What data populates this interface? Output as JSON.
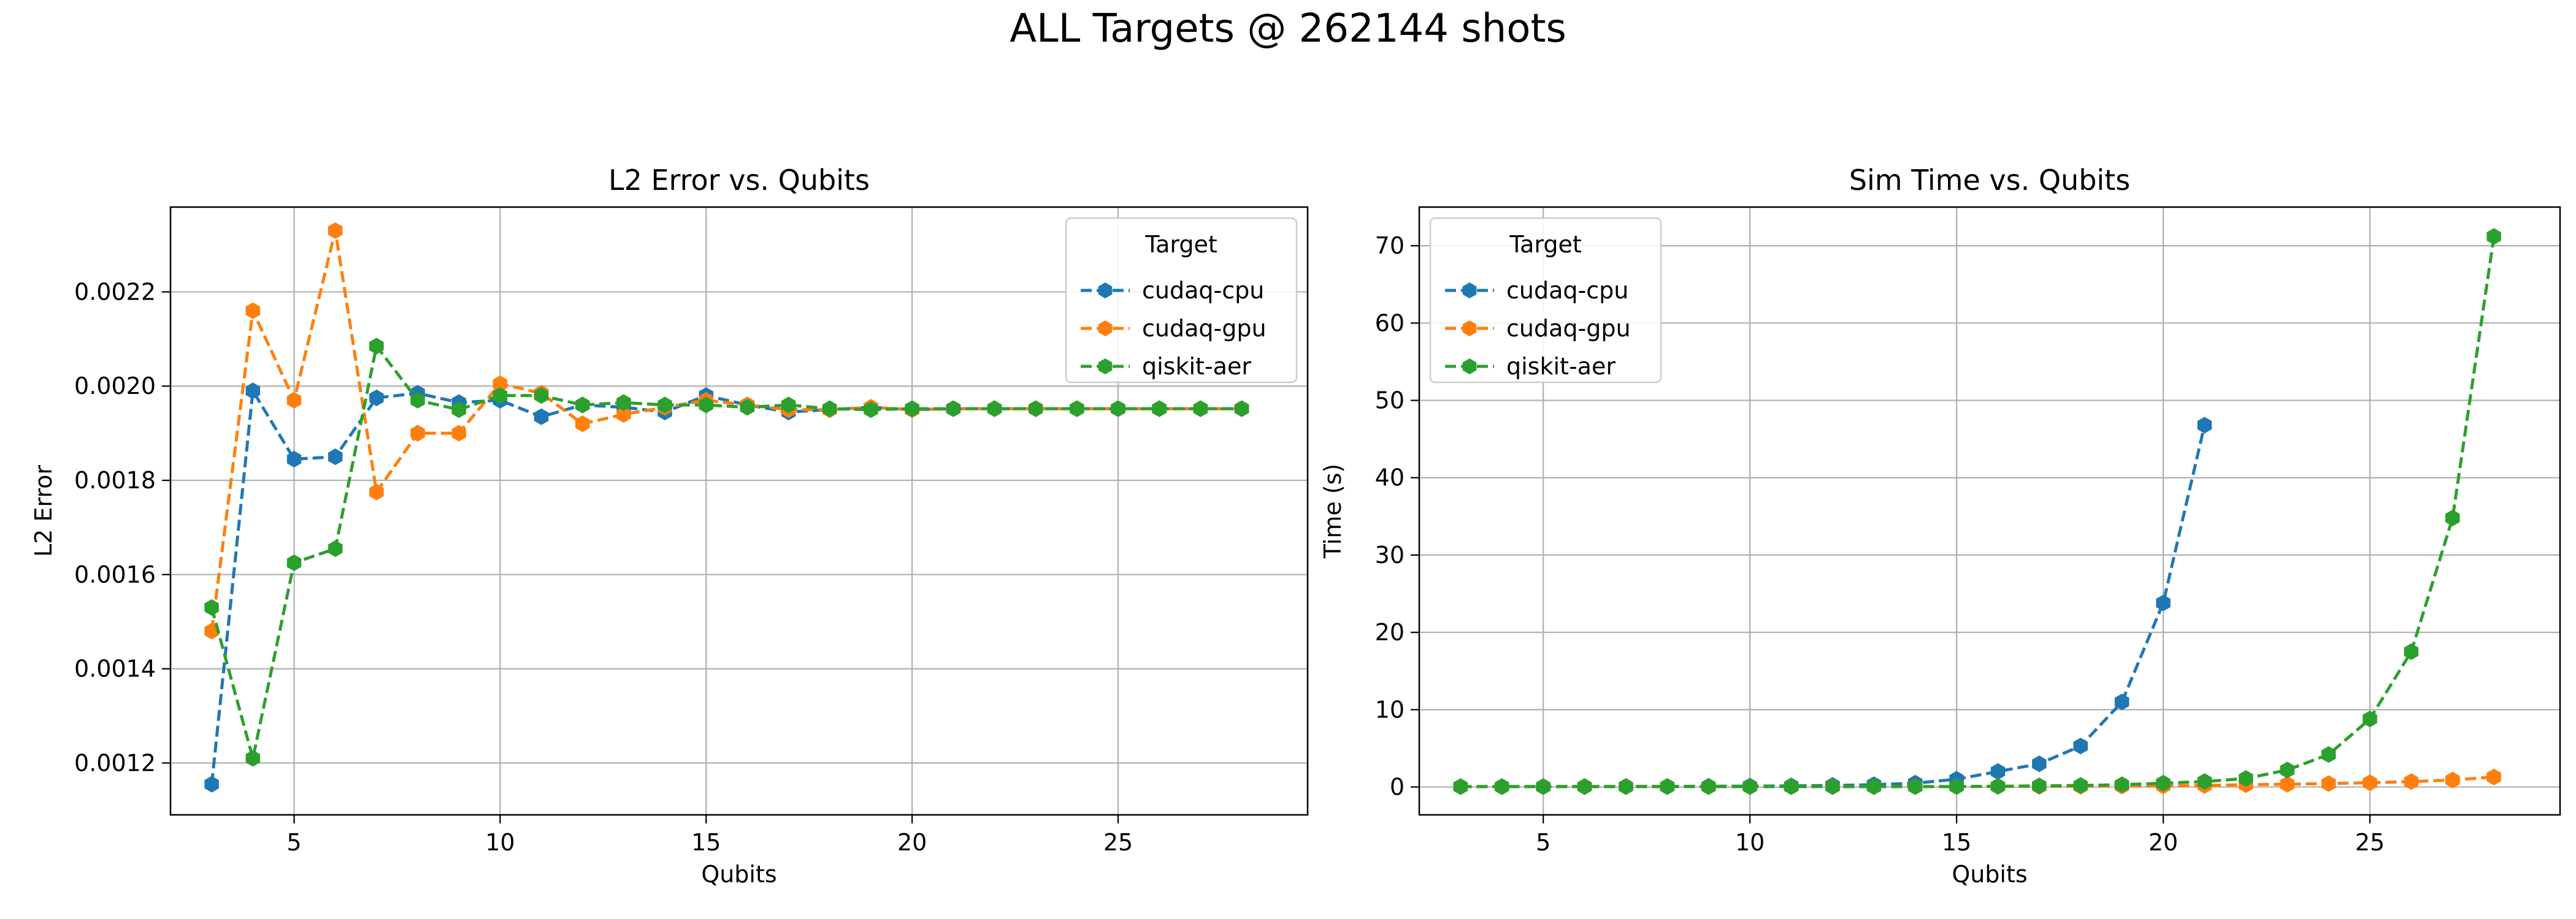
{
  "figure": {
    "suptitle": "ALL Targets @ 262144 shots"
  },
  "chart_data": [
    {
      "type": "line",
      "title": "L2 Error vs. Qubits",
      "xlabel": "Qubits",
      "ylabel": "L2 Error",
      "xlim": [
        2.0,
        29.6
      ],
      "ylim": [
        0.00109,
        0.00238
      ],
      "xticks": [
        5,
        10,
        15,
        20,
        25
      ],
      "yticks": [
        0.0012,
        0.0014,
        0.0016,
        0.0018,
        0.002,
        0.0022
      ],
      "ytick_labels": [
        "0.0012",
        "0.0014",
        "0.0016",
        "0.0018",
        "0.0020",
        "0.0022"
      ],
      "grid": true,
      "legend": {
        "title": "Target",
        "position": "top-right"
      },
      "series": [
        {
          "name": "cudaq-cpu",
          "color": "#1f77b4",
          "x": [
            3,
            4,
            5,
            6,
            7,
            8,
            9,
            10,
            11,
            12,
            13,
            14,
            15,
            16,
            17,
            18,
            19,
            20,
            21,
            22,
            23,
            24,
            25,
            26,
            27,
            28
          ],
          "y": [
            0.001155,
            0.00199,
            0.001845,
            0.00185,
            0.001975,
            0.001985,
            0.001965,
            0.00197,
            0.001935,
            0.00196,
            0.001955,
            0.001945,
            0.00198,
            0.00196,
            0.001945,
            0.00195,
            0.001955,
            0.00195,
            0.001952,
            0.001952,
            0.001952,
            0.001952,
            0.001952,
            0.001952,
            0.001952,
            0.001952
          ]
        },
        {
          "name": "cudaq-gpu",
          "color": "#ff7f0e",
          "x": [
            3,
            4,
            5,
            6,
            7,
            8,
            9,
            10,
            11,
            12,
            13,
            14,
            15,
            16,
            17,
            18,
            19,
            20,
            21,
            22,
            23,
            24,
            25,
            26,
            27,
            28
          ],
          "y": [
            0.00148,
            0.00216,
            0.00197,
            0.00233,
            0.001775,
            0.0019,
            0.0019,
            0.002005,
            0.001985,
            0.00192,
            0.00194,
            0.001955,
            0.00197,
            0.00196,
            0.00195,
            0.00195,
            0.001955,
            0.00195,
            0.001952,
            0.001952,
            0.001952,
            0.001952,
            0.001952,
            0.001952,
            0.001952,
            0.001952
          ]
        },
        {
          "name": "qiskit-aer",
          "color": "#2ca02c",
          "x": [
            3,
            4,
            5,
            6,
            7,
            8,
            9,
            10,
            11,
            12,
            13,
            14,
            15,
            16,
            17,
            18,
            19,
            20,
            21,
            22,
            23,
            24,
            25,
            26,
            27,
            28
          ],
          "y": [
            0.00153,
            0.00121,
            0.001625,
            0.001655,
            0.002085,
            0.00197,
            0.00195,
            0.00198,
            0.00198,
            0.00196,
            0.001965,
            0.00196,
            0.00196,
            0.001955,
            0.00196,
            0.001952,
            0.00195,
            0.001952,
            0.001952,
            0.001952,
            0.001952,
            0.001952,
            0.001952,
            0.001952,
            0.001952,
            0.001952
          ]
        }
      ]
    },
    {
      "type": "line",
      "title": "Sim Time vs. Qubits",
      "xlabel": "Qubits",
      "ylabel": "Time (s)",
      "xlim": [
        2.0,
        29.6
      ],
      "ylim": [
        -3.6,
        75.0
      ],
      "xticks": [
        5,
        10,
        15,
        20,
        25
      ],
      "yticks": [
        0,
        10,
        20,
        30,
        40,
        50,
        60,
        70
      ],
      "ytick_labels": [
        "0",
        "10",
        "20",
        "30",
        "40",
        "50",
        "60",
        "70"
      ],
      "grid": true,
      "legend": {
        "title": "Target",
        "position": "top-left"
      },
      "series": [
        {
          "name": "cudaq-cpu",
          "color": "#1f77b4",
          "x": [
            3,
            4,
            5,
            6,
            7,
            8,
            9,
            10,
            11,
            12,
            13,
            14,
            15,
            16,
            17,
            18,
            19,
            20,
            21
          ],
          "y": [
            0.05,
            0.05,
            0.05,
            0.06,
            0.07,
            0.08,
            0.1,
            0.12,
            0.15,
            0.2,
            0.3,
            0.5,
            1.0,
            2.0,
            3.0,
            5.3,
            11.0,
            23.8,
            46.8
          ]
        },
        {
          "name": "cudaq-gpu",
          "color": "#ff7f0e",
          "x": [
            3,
            4,
            5,
            6,
            7,
            8,
            9,
            10,
            11,
            12,
            13,
            14,
            15,
            16,
            17,
            18,
            19,
            20,
            21,
            22,
            23,
            24,
            25,
            26,
            27,
            28
          ],
          "y": [
            0.05,
            0.05,
            0.05,
            0.05,
            0.05,
            0.05,
            0.05,
            0.05,
            0.05,
            0.05,
            0.05,
            0.05,
            0.06,
            0.07,
            0.08,
            0.1,
            0.12,
            0.15,
            0.2,
            0.3,
            0.35,
            0.45,
            0.55,
            0.7,
            0.9,
            1.3
          ]
        },
        {
          "name": "qiskit-aer",
          "color": "#2ca02c",
          "x": [
            3,
            4,
            5,
            6,
            7,
            8,
            9,
            10,
            11,
            12,
            13,
            14,
            15,
            16,
            17,
            18,
            19,
            20,
            21,
            22,
            23,
            24,
            25,
            26,
            27,
            28
          ],
          "y": [
            0.05,
            0.05,
            0.05,
            0.05,
            0.05,
            0.05,
            0.05,
            0.05,
            0.05,
            0.05,
            0.05,
            0.05,
            0.06,
            0.1,
            0.15,
            0.2,
            0.3,
            0.5,
            0.7,
            1.1,
            2.2,
            4.2,
            8.8,
            17.5,
            34.8,
            71.2
          ]
        }
      ]
    }
  ]
}
